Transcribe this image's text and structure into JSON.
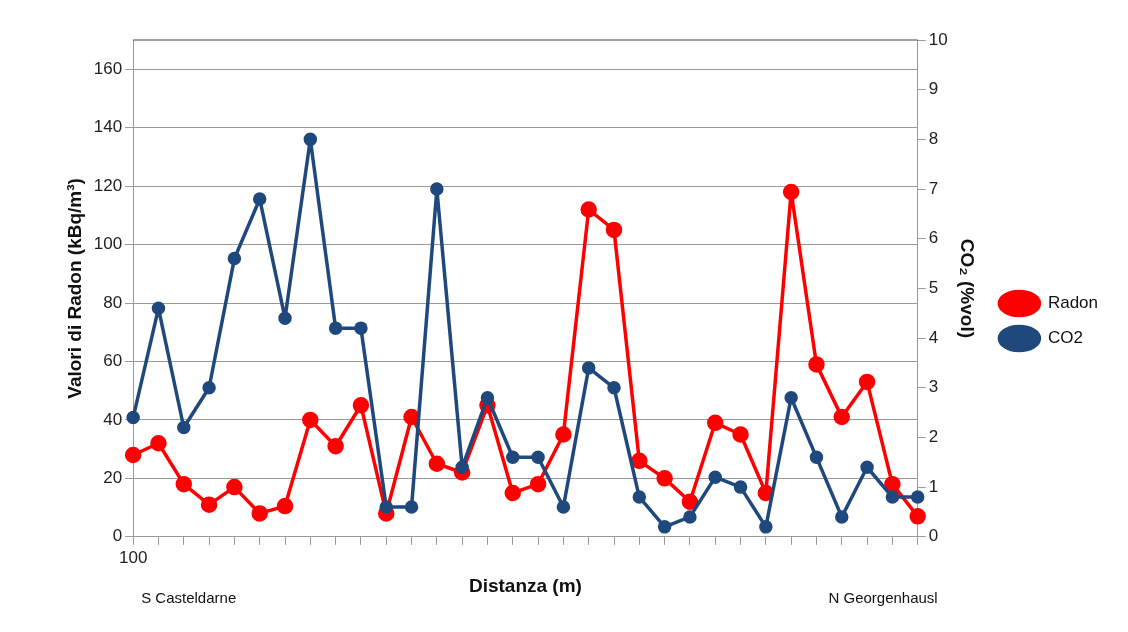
{
  "chart_data": {
    "type": "line",
    "xlabel": "Distanza (m)",
    "ylabel": "Valori di Radon (kBq/m³)",
    "y2label": "CO₂ (%vol)",
    "categories": [
      "100",
      null,
      null,
      null,
      null,
      null,
      null,
      null,
      null,
      null,
      null,
      null,
      null,
      null,
      null,
      null,
      null,
      null,
      null,
      null,
      null,
      null,
      null,
      null,
      null,
      null,
      null,
      null,
      null,
      null,
      null,
      null
    ],
    "series": [
      {
        "name": "Radon",
        "color": "#ff0000",
        "values": [
          28,
          32,
          18,
          11,
          17,
          8,
          10.5,
          40,
          31,
          45,
          8,
          41,
          25,
          22,
          45,
          15,
          18,
          35,
          112,
          105,
          26,
          20,
          12,
          39,
          35,
          15,
          118,
          59,
          41,
          53,
          18,
          7
        ]
      },
      {
        "name": "CO2",
        "color": "#1f497d",
        "axis": "y2",
        "values": [
          2.4,
          4.6,
          2.2,
          3.0,
          5.6,
          6.8,
          4.4,
          8.0,
          4.2,
          4.2,
          0.6,
          0.6,
          7.0,
          1.4,
          2.8,
          1.6,
          1.6,
          0.6,
          3.4,
          3.0,
          0.8,
          0.2,
          0.4,
          1.2,
          1.0,
          0.2,
          2.8,
          1.6,
          0.4,
          1.4,
          0.8,
          0.8
        ]
      }
    ],
    "ylim": [
      0,
      170
    ],
    "yticks": [
      0,
      20,
      40,
      60,
      80,
      100,
      120,
      140,
      160
    ],
    "y2lim": [
      0,
      10
    ],
    "y2ticks": [
      0,
      1,
      2,
      3,
      4,
      5,
      6,
      7,
      8,
      9,
      10
    ],
    "grid": "y",
    "legend": "right",
    "marker": "circle",
    "line_style": "solid",
    "annotations": [
      "S Casteldarne",
      "N Georgenhausl"
    ]
  }
}
